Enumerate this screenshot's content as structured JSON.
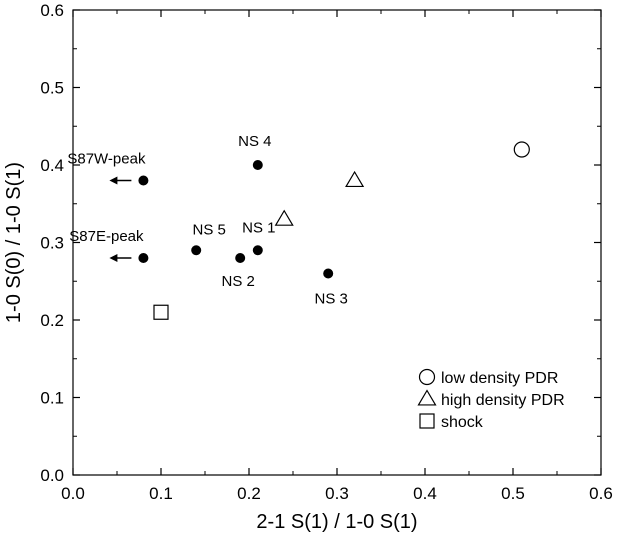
{
  "chart_data": {
    "type": "scatter",
    "xlabel": "2-1 S(1) / 1-0 S(1)",
    "ylabel": "1-0 S(0) / 1-0 S(1)",
    "xlim": [
      0.0,
      0.6
    ],
    "ylim": [
      0.0,
      0.6
    ],
    "xticks": [
      "0.0",
      "0.1",
      "0.2",
      "0.3",
      "0.4",
      "0.5",
      "0.6"
    ],
    "yticks": [
      "0.0",
      "0.1",
      "0.2",
      "0.3",
      "0.4",
      "0.5",
      "0.6"
    ],
    "grid": false,
    "legend_position": "bottom-right",
    "series": [
      {
        "name": "",
        "marker": "filled-circle",
        "color": "#000000",
        "points": [
          {
            "label": "S87W-peak",
            "x": 0.08,
            "y": 0.38,
            "upper_limit_x": true
          },
          {
            "label": "S87E-peak",
            "x": 0.08,
            "y": 0.28,
            "upper_limit_x": true
          },
          {
            "label": "NS 5",
            "x": 0.14,
            "y": 0.29
          },
          {
            "label": "NS 2",
            "x": 0.19,
            "y": 0.28
          },
          {
            "label": "NS 1",
            "x": 0.21,
            "y": 0.29
          },
          {
            "label": "NS 4",
            "x": 0.21,
            "y": 0.4
          },
          {
            "label": "NS 3",
            "x": 0.29,
            "y": 0.26
          }
        ]
      },
      {
        "name": "low density PDR",
        "marker": "open-circle",
        "color": "#000000",
        "points": [
          {
            "x": 0.51,
            "y": 0.42
          }
        ]
      },
      {
        "name": "high density PDR",
        "marker": "open-triangle",
        "color": "#000000",
        "points": [
          {
            "x": 0.24,
            "y": 0.33
          },
          {
            "x": 0.32,
            "y": 0.38
          }
        ]
      },
      {
        "name": "shock",
        "marker": "open-square",
        "color": "#000000",
        "points": [
          {
            "x": 0.1,
            "y": 0.21
          }
        ]
      }
    ]
  }
}
